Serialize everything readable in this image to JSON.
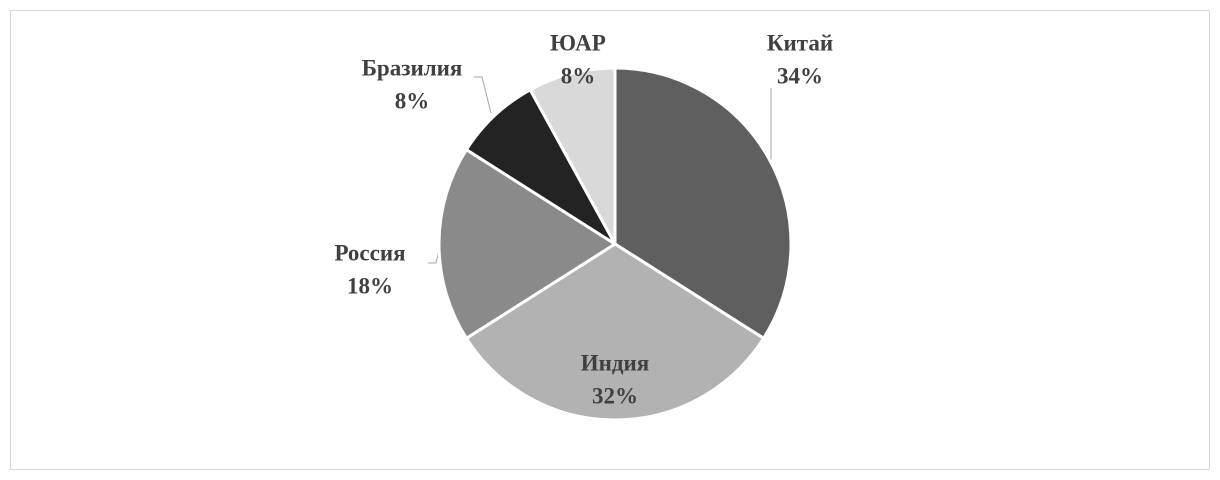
{
  "chart_data": {
    "type": "pie",
    "categories": [
      "Китай",
      "Индия",
      "Россия",
      "Бразилия",
      "ЮАР"
    ],
    "values": [
      34,
      32,
      18,
      8,
      8
    ],
    "value_labels": [
      "34%",
      "32%",
      "18%",
      "8%",
      "8%"
    ],
    "colors": [
      "#5f5f5f",
      "#b2b2b2",
      "#8a8a8a",
      "#232323",
      "#d9d9d9"
    ]
  }
}
